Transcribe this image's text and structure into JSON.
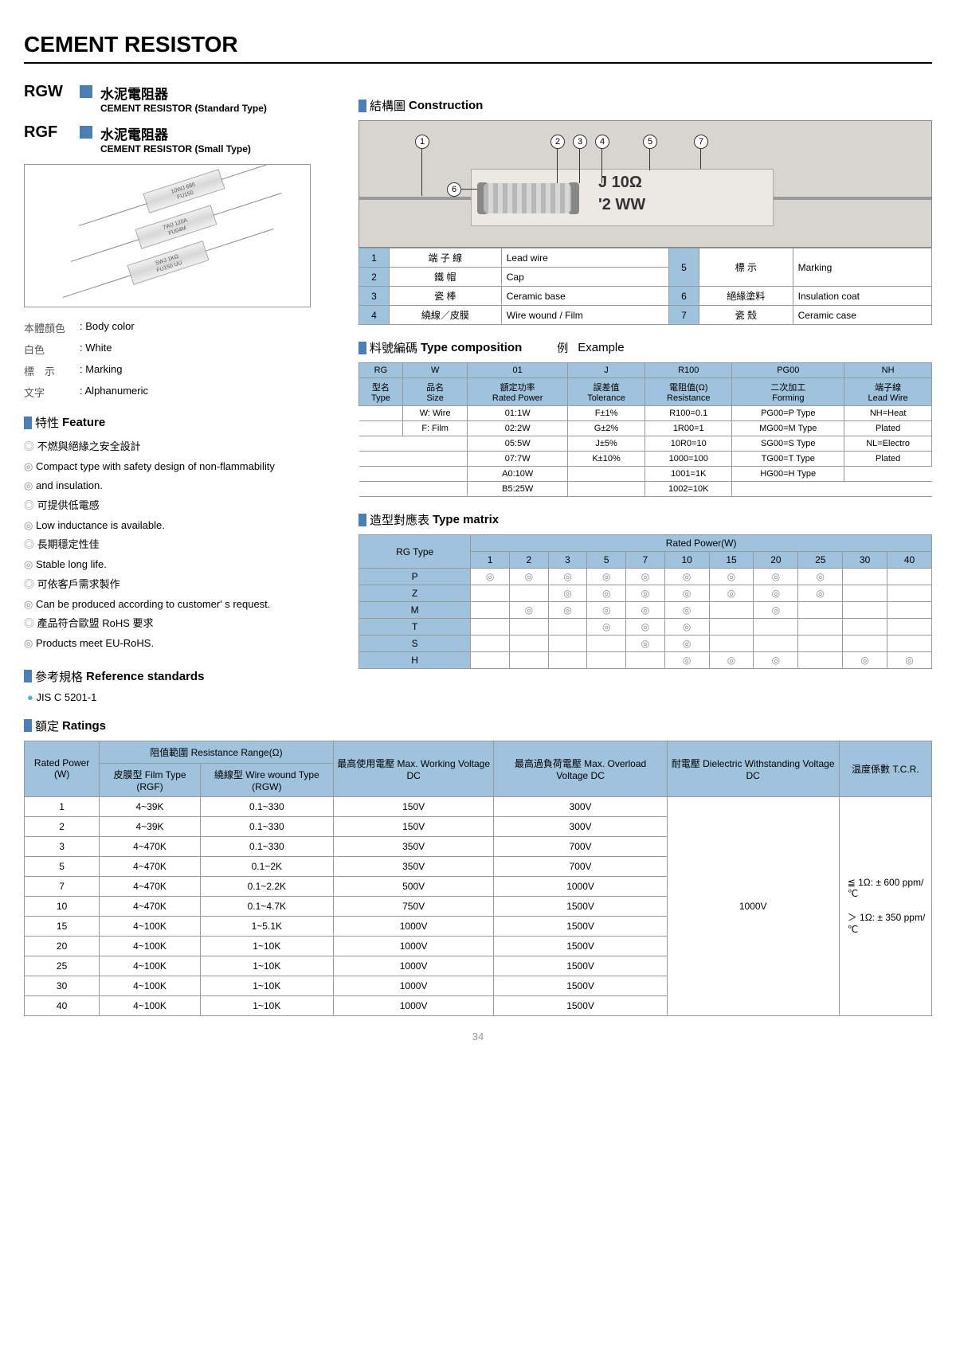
{
  "title": "CEMENT RESISTOR",
  "pageNumber": "34",
  "types": [
    {
      "code": "RGW",
      "name_zh": "水泥電阻器",
      "name_en": "CEMENT RESISTOR (Standard Type)"
    },
    {
      "code": "RGF",
      "name_zh": "水泥電阻器",
      "name_en": "CEMENT RESISTOR (Small Type)"
    }
  ],
  "info": {
    "bodycolor_zh": "本體顏色",
    "bodycolor_en": ": Body color",
    "white_zh": "白色",
    "white_en": ": White",
    "marking_zh": "標　示",
    "marking_en": ": Marking",
    "alnum_zh": "文字",
    "alnum_en": ": Alphanumeric"
  },
  "features": {
    "head_zh": "特性",
    "head_en": "Feature",
    "items": [
      "不燃與絕緣之安全設計",
      "Compact type with safety design of non-flammability",
      "and insulation.",
      "可提供低電感",
      "Low inductance is available.",
      "長期穩定性佳",
      "Stable long life.",
      "可依客戶需求製作",
      "Can be produced according to customer' s request.",
      "產品符合歐盟 RoHS 要求",
      "Products meet  EU-RoHS."
    ]
  },
  "refstd": {
    "head_zh": "參考規格",
    "head_en": "Reference standards",
    "item": "JIS C 5201-1"
  },
  "construction": {
    "head_zh": "結構圖",
    "head_en": "Construction",
    "mark_line1": "J  10Ω",
    "mark_line2": "'2  WW",
    "parts": [
      {
        "n": "1",
        "zh": "端 子 線",
        "en": "Lead wire"
      },
      {
        "n": "2",
        "zh": "鐵      帽",
        "en": "Cap"
      },
      {
        "n": "3",
        "zh": "瓷      棒",
        "en": "Ceramic base"
      },
      {
        "n": "4",
        "zh": "繞線／皮膜",
        "en": "Wire wound / Film"
      },
      {
        "n": "5",
        "zh": "標      示",
        "en": "Marking"
      },
      {
        "n": "6",
        "zh": "絕緣塗料",
        "en": "Insulation coat"
      },
      {
        "n": "7",
        "zh": "瓷      殼",
        "en": "Ceramic case"
      }
    ]
  },
  "composition": {
    "head_zh": "料號編碼",
    "head_en": "Type composition",
    "example_zh": "例",
    "example_en": "Example",
    "code_row": [
      "RG",
      "W",
      "01",
      "J",
      "R100",
      "PG00",
      "NH"
    ],
    "label_row_zh": [
      "型名",
      "品名",
      "額定功率",
      "誤差值",
      "電阻值(Ω)",
      "二次加工",
      "端子線"
    ],
    "label_row_en": [
      "Type",
      "Size",
      "Rated Power",
      "Tolerance",
      "Resistance",
      "Forming",
      "Lead Wire"
    ],
    "body": [
      [
        "",
        "W: Wire",
        "01:1W",
        "F±1%",
        "R100=0.1",
        "PG00=P Type",
        "NH=Heat"
      ],
      [
        "",
        "F: Film",
        "02:2W",
        "G±2%",
        "1R00=1",
        "MG00=M Type",
        "Plated"
      ],
      [
        "",
        "",
        "05:5W",
        "J±5%",
        "10R0=10",
        "SG00=S Type",
        "NL=Electro"
      ],
      [
        "",
        "",
        "07:7W",
        "K±10%",
        "1000=100",
        "TG00=T Type",
        "Plated"
      ],
      [
        "",
        "",
        "A0:10W",
        "",
        "1001=1K",
        "HG00=H Type",
        ""
      ],
      [
        "",
        "",
        "B5:25W",
        "",
        "1002=10K",
        "",
        ""
      ]
    ]
  },
  "matrix": {
    "head_zh": "造型對應表",
    "head_en": "Type matrix",
    "rowhead": "RG Type",
    "colhead": "Rated Power(W)",
    "powers": [
      "1",
      "2",
      "3",
      "5",
      "7",
      "10",
      "15",
      "20",
      "25",
      "30",
      "40"
    ],
    "rows": [
      {
        "t": "P",
        "v": [
          1,
          1,
          1,
          1,
          1,
          1,
          1,
          1,
          1,
          0,
          0
        ]
      },
      {
        "t": "Z",
        "v": [
          0,
          0,
          1,
          1,
          1,
          1,
          1,
          1,
          1,
          0,
          0
        ]
      },
      {
        "t": "M",
        "v": [
          0,
          1,
          1,
          1,
          1,
          1,
          0,
          1,
          0,
          0,
          0
        ]
      },
      {
        "t": "T",
        "v": [
          0,
          0,
          0,
          1,
          1,
          1,
          0,
          0,
          0,
          0,
          0
        ]
      },
      {
        "t": "S",
        "v": [
          0,
          0,
          0,
          0,
          1,
          1,
          0,
          0,
          0,
          0,
          0
        ]
      },
      {
        "t": "H",
        "v": [
          0,
          0,
          0,
          0,
          0,
          1,
          1,
          1,
          0,
          1,
          1
        ]
      }
    ]
  },
  "ratings": {
    "head_zh": "額定",
    "head_en": "Ratings",
    "col_power": "Rated Power (W)",
    "col_range": "阻值範圍 Resistance Range(Ω)",
    "col_film": "皮膜型 Film Type (RGF)",
    "col_wire": "繞線型 Wire wound Type (RGW)",
    "col_maxv": "最高使用電壓 Max. Working Voltage DC",
    "col_ol": "最高過負荷電壓 Max. Overload Voltage DC",
    "col_diel": "耐電壓 Dielectric Withstanding Voltage DC",
    "col_tcr": "温度係數 T.C.R.",
    "diel_value": "1000V",
    "tcr_line1": "≦ 1Ω: ± 600 ppm/℃",
    "tcr_line2": "＞ 1Ω: ± 350 ppm/℃",
    "rows": [
      {
        "p": "1",
        "f": "4~39K",
        "w": "0.1~330",
        "mv": "150V",
        "ol": "300V"
      },
      {
        "p": "2",
        "f": "4~39K",
        "w": "0.1~330",
        "mv": "150V",
        "ol": "300V"
      },
      {
        "p": "3",
        "f": "4~470K",
        "w": "0.1~330",
        "mv": "350V",
        "ol": "700V"
      },
      {
        "p": "5",
        "f": "4~470K",
        "w": "0.1~2K",
        "mv": "350V",
        "ol": "700V"
      },
      {
        "p": "7",
        "f": "4~470K",
        "w": "0.1~2.2K",
        "mv": "500V",
        "ol": "1000V"
      },
      {
        "p": "10",
        "f": "4~470K",
        "w": "0.1~4.7K",
        "mv": "750V",
        "ol": "1500V"
      },
      {
        "p": "15",
        "f": "4~100K",
        "w": "1~5.1K",
        "mv": "1000V",
        "ol": "1500V"
      },
      {
        "p": "20",
        "f": "4~100K",
        "w": "1~10K",
        "mv": "1000V",
        "ol": "1500V"
      },
      {
        "p": "25",
        "f": "4~100K",
        "w": "1~10K",
        "mv": "1000V",
        "ol": "1500V"
      },
      {
        "p": "30",
        "f": "4~100K",
        "w": "1~10K",
        "mv": "1000V",
        "ol": "1500V"
      },
      {
        "p": "40",
        "f": "4~100K",
        "w": "1~10K",
        "mv": "1000V",
        "ol": "1500V"
      }
    ]
  }
}
